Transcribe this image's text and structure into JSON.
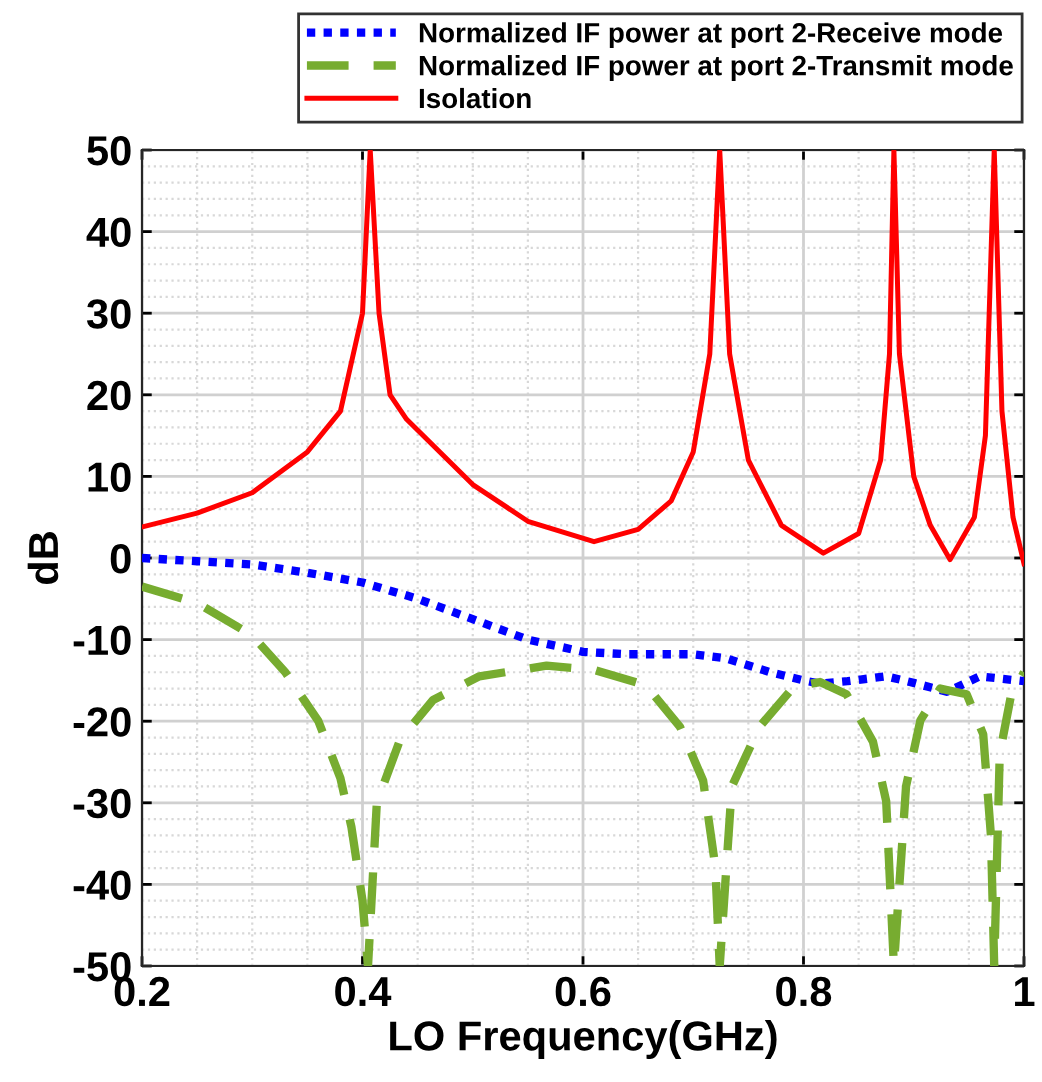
{
  "chart_data": {
    "type": "line",
    "xlabel": "LO Frequency(GHz)",
    "ylabel": "dB",
    "xlim": [
      0.2,
      1
    ],
    "ylim": [
      -50,
      50
    ],
    "xticks": [
      0.2,
      0.4,
      0.6,
      0.8,
      1
    ],
    "yticks": [
      -50,
      -40,
      -30,
      -20,
      -10,
      0,
      10,
      20,
      30,
      40,
      50
    ],
    "grid": true,
    "legend": "top right",
    "series": [
      {
        "name": "Normalized IF power at port 2-Receive mode",
        "color": "#0000ff",
        "line_style": "dotted",
        "x": [
          0.2,
          0.25,
          0.3,
          0.35,
          0.4,
          0.45,
          0.5,
          0.55,
          0.6,
          0.64,
          0.7,
          0.73,
          0.77,
          0.8,
          0.815,
          0.84,
          0.875,
          0.9,
          0.93,
          0.96,
          0.98,
          1.0
        ],
        "values": [
          0,
          -0.4,
          -0.8,
          -1.8,
          -3,
          -5,
          -7.5,
          -10,
          -11.5,
          -11.8,
          -11.8,
          -12.3,
          -14,
          -15,
          -15.4,
          -15.1,
          -14.5,
          -15.3,
          -16.4,
          -14.5,
          -14.8,
          -15.1
        ]
      },
      {
        "name": "Normalized IF power at port 2-Transmit mode",
        "color": "#77ac30",
        "line_style": "dashed",
        "x": [
          0.2,
          0.25,
          0.3,
          0.33,
          0.36,
          0.38,
          0.39,
          0.4,
          0.405,
          0.413,
          0.434,
          0.464,
          0.506,
          0.567,
          0.61,
          0.657,
          0.688,
          0.709,
          0.72,
          0.724,
          0.735,
          0.76,
          0.791,
          0.815,
          0.839,
          0.863,
          0.875,
          0.882,
          0.893,
          0.906,
          0.924,
          0.948,
          0.963,
          0.97,
          0.973,
          0.978,
          0.988,
          1.0
        ],
        "values": [
          -3.5,
          -5.5,
          -9.5,
          -14,
          -20,
          -27,
          -33,
          -42,
          -50,
          -30,
          -22.3,
          -17.4,
          -14.5,
          -13.2,
          -13.7,
          -15.6,
          -20.7,
          -27.3,
          -37.8,
          -50,
          -28,
          -20.7,
          -15.8,
          -15.2,
          -16.7,
          -22.5,
          -29.8,
          -50,
          -28,
          -19.9,
          -16,
          -16.7,
          -21.6,
          -34,
          -50,
          -24,
          -17,
          -14
        ]
      },
      {
        "name": "Isolation",
        "color": "#ff0000",
        "line_style": "solid",
        "x": [
          0.2,
          0.25,
          0.3,
          0.35,
          0.38,
          0.4,
          0.407,
          0.415,
          0.425,
          0.44,
          0.5,
          0.55,
          0.61,
          0.65,
          0.68,
          0.7,
          0.715,
          0.724,
          0.733,
          0.75,
          0.78,
          0.818,
          0.85,
          0.87,
          0.878,
          0.882,
          0.887,
          0.9,
          0.915,
          0.933,
          0.955,
          0.965,
          0.973,
          0.98,
          0.99,
          1.0
        ],
        "values": [
          3.8,
          5.5,
          8,
          13,
          18,
          30,
          50,
          30,
          20,
          17,
          9,
          4.5,
          2,
          3.5,
          7,
          13,
          25,
          50,
          25,
          12,
          4,
          0.6,
          3,
          12,
          25,
          50,
          25,
          10,
          4,
          -0.2,
          5,
          15,
          50,
          18,
          5,
          -0.7
        ]
      }
    ]
  }
}
